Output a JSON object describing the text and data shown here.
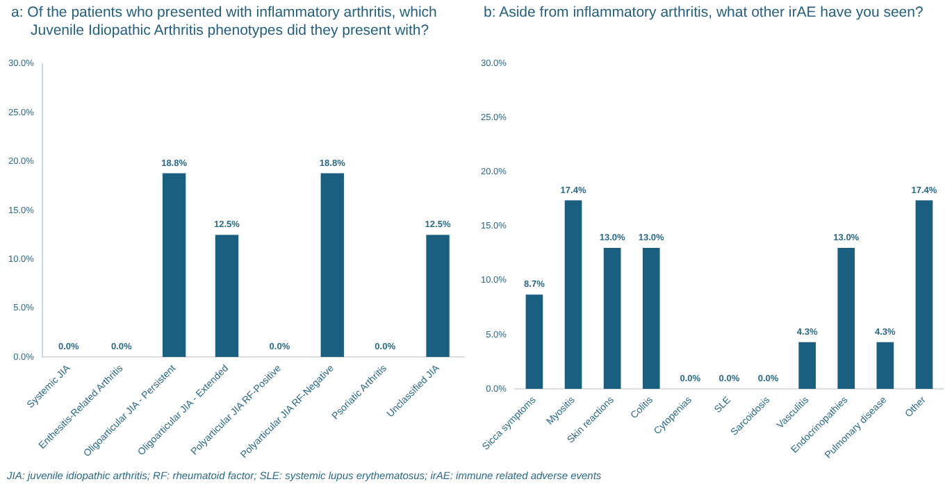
{
  "chart_data": [
    {
      "type": "bar",
      "title": "a:  Of the patients who presented with inflammatory arthritis, which Juvenile Idiopathic Arthritis  phenotypes did they present with?",
      "categories": [
        "Systemic JIA",
        "Enthesitis-Related Arthritis",
        "Oligoarticular JIA - Persistent",
        "Oligoarticular JIA - Extended",
        "Polyarticular JIA RF-Positive",
        "Polyarticular JIA RF-Negative",
        "Psoriatic Arthritis",
        "Unclassified JIA"
      ],
      "values": [
        0,
        0,
        18.8,
        12.5,
        0,
        18.8,
        0,
        12.5
      ],
      "value_labels": [
        "0.0%",
        "0.0%",
        "18.8%",
        "12.5%",
        "0.0%",
        "18.8%",
        "0.0%",
        "12.5%"
      ],
      "color": "#1a5f80",
      "ylim": [
        0,
        30
      ],
      "yticks": [
        {
          "value": 0,
          "label": "0.0%"
        },
        {
          "value": 5,
          "label": "5.0%"
        },
        {
          "value": 10,
          "label": "10.0%"
        },
        {
          "value": 15,
          "label": "15.0%"
        },
        {
          "value": 20,
          "label": "20.0%"
        },
        {
          "value": 25,
          "label": "25.0%"
        },
        {
          "value": 30,
          "label": "30.0%"
        }
      ],
      "grid": false,
      "legend": false,
      "annotations": [
        "JIA: juvenile idiopathic arthritis; RF: rheumatoid factor; SLE: systemic lupus erythematosus; irAE: immune related adverse events"
      ]
    },
    {
      "type": "bar",
      "title": "b: Aside from inflammatory arthritis, what other irAE have you seen?",
      "categories": [
        "Sicca symptoms",
        "Myositis",
        "Skin reactions",
        "Colitis",
        "Cytopenias",
        "SLE",
        "Sarcoidosis",
        "Vasculitis",
        "Endocrinopathies",
        "Pulmonary disease",
        "Other"
      ],
      "values": [
        8.7,
        17.4,
        13.0,
        13.0,
        0,
        0,
        0,
        4.3,
        13.0,
        4.3,
        17.4
      ],
      "value_labels": [
        "8.7%",
        "17.4%",
        "13.0%",
        "13.0%",
        "0.0%",
        "0.0%",
        "0.0%",
        "4.3%",
        "13.0%",
        "4.3%",
        "17.4%"
      ],
      "color": "#1a5f80",
      "ylim": [
        0,
        30
      ],
      "yticks": [
        {
          "value": 0,
          "label": "0.0%"
        },
        {
          "value": 5,
          "label": "5.0%"
        },
        {
          "value": 10,
          "label": "10.0%"
        },
        {
          "value": 15,
          "label": "15.0%"
        },
        {
          "value": 20,
          "label": "20.0%"
        },
        {
          "value": 25,
          "label": "25.0%"
        },
        {
          "value": 30,
          "label": "30.0%"
        }
      ],
      "grid": false,
      "legend": false
    }
  ]
}
